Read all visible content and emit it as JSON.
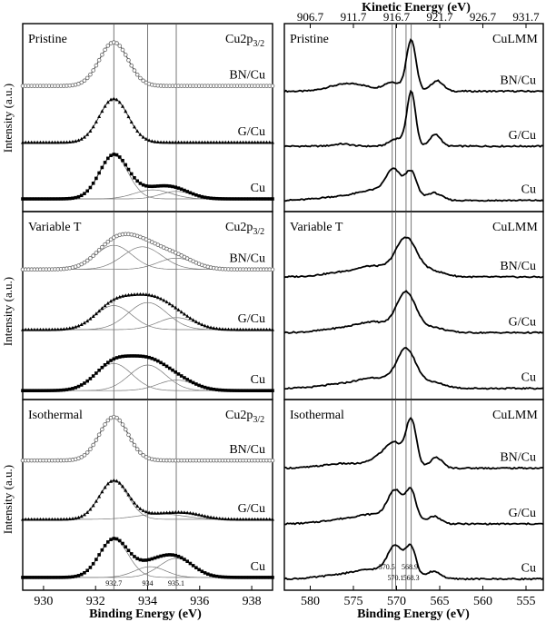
{
  "figure": {
    "top_axis_title": "Kinetic Energy (eV)",
    "bottom_axis_title": "Binding Energy (eV)",
    "y_axis_title": "Intensity (a.u.)"
  },
  "chart_data": [
    {
      "type": "line",
      "xlabel": "Binding Energy (eV)",
      "ylabel": "Intensity (a.u.)",
      "x_axis_ticks": [
        930,
        932,
        934,
        936,
        938
      ],
      "xlim": [
        929.2,
        938.8
      ],
      "x_reversed": false,
      "reference_lines": [
        932.7,
        934,
        935.1
      ],
      "reference_labels": [
        "932.7",
        "934",
        "935.1"
      ],
      "panels": [
        {
          "title": "Pristine",
          "spectrum_label": "Cu2p3/2",
          "series": [
            {
              "name": "BN/Cu",
              "offset": 1.62,
              "marker": "x",
              "peaks": [
                {
                  "center": 932.7,
                  "height": 0.58,
                  "width": 0.55
                }
              ],
              "components": []
            },
            {
              "name": "G/Cu",
              "offset": 0.87,
              "marker": "triangle",
              "peaks": [
                {
                  "center": 932.7,
                  "height": 0.58,
                  "width": 0.55
                }
              ],
              "components": []
            },
            {
              "name": "Cu",
              "offset": 0.12,
              "marker": "square",
              "peaks": [
                {
                  "center": 932.7,
                  "height": 0.58,
                  "width": 0.55
                },
                {
                  "center": 934.2,
                  "height": 0.12,
                  "width": 0.7
                },
                {
                  "center": 935.1,
                  "height": 0.1,
                  "width": 0.6
                }
              ],
              "components": [
                {
                  "center": 932.7,
                  "height": 0.58,
                  "width": 0.55
                },
                {
                  "center": 934.2,
                  "height": 0.12,
                  "width": 0.7
                },
                {
                  "center": 935.1,
                  "height": 0.1,
                  "width": 0.6
                }
              ]
            }
          ]
        },
        {
          "title": "Variable T",
          "spectrum_label": "Cu2p3/2",
          "series": [
            {
              "name": "BN/Cu",
              "offset": 1.68,
              "marker": "x",
              "peaks": [
                {
                  "center": 932.7,
                  "height": 0.32,
                  "width": 0.7
                },
                {
                  "center": 933.8,
                  "height": 0.3,
                  "width": 0.75
                },
                {
                  "center": 935.1,
                  "height": 0.15,
                  "width": 0.7
                }
              ],
              "components": [
                {
                  "center": 932.7,
                  "height": 0.32,
                  "width": 0.7
                },
                {
                  "center": 933.8,
                  "height": 0.3,
                  "width": 0.75
                },
                {
                  "center": 935.1,
                  "height": 0.15,
                  "width": 0.7
                }
              ]
            },
            {
              "name": "G/Cu",
              "offset": 0.88,
              "marker": "triangle",
              "peaks": [
                {
                  "center": 932.7,
                  "height": 0.32,
                  "width": 0.7
                },
                {
                  "center": 934.0,
                  "height": 0.36,
                  "width": 0.75
                },
                {
                  "center": 935.1,
                  "height": 0.16,
                  "width": 0.7
                }
              ],
              "components": [
                {
                  "center": 932.7,
                  "height": 0.32,
                  "width": 0.7
                },
                {
                  "center": 934.0,
                  "height": 0.36,
                  "width": 0.75
                },
                {
                  "center": 935.1,
                  "height": 0.16,
                  "width": 0.7
                }
              ]
            },
            {
              "name": "Cu",
              "offset": 0.07,
              "marker": "square",
              "peaks": [
                {
                  "center": 932.7,
                  "height": 0.36,
                  "width": 0.7
                },
                {
                  "center": 934.0,
                  "height": 0.34,
                  "width": 0.7
                },
                {
                  "center": 935.1,
                  "height": 0.14,
                  "width": 0.7
                }
              ],
              "components": [
                {
                  "center": 932.7,
                  "height": 0.36,
                  "width": 0.7
                },
                {
                  "center": 934.0,
                  "height": 0.34,
                  "width": 0.7
                },
                {
                  "center": 935.1,
                  "height": 0.14,
                  "width": 0.7
                }
              ]
            }
          ]
        },
        {
          "title": "Isothermal",
          "spectrum_label": "Cu2p3/2",
          "series": [
            {
              "name": "BN/Cu",
              "offset": 1.65,
              "marker": "x",
              "peaks": [
                {
                  "center": 932.7,
                  "height": 0.57,
                  "width": 0.55
                }
              ],
              "components": []
            },
            {
              "name": "G/Cu",
              "offset": 0.88,
              "marker": "triangle",
              "peaks": [
                {
                  "center": 932.7,
                  "height": 0.5,
                  "width": 0.55
                },
                {
                  "center": 934.5,
                  "height": 0.07,
                  "width": 0.9
                },
                {
                  "center": 935.6,
                  "height": 0.05,
                  "width": 0.6
                }
              ],
              "components": [
                {
                  "center": 932.7,
                  "height": 0.5,
                  "width": 0.55
                },
                {
                  "center": 934.5,
                  "height": 0.07,
                  "width": 0.9
                }
              ]
            },
            {
              "name": "Cu",
              "offset": 0.12,
              "marker": "square",
              "peaks": [
                {
                  "center": 932.7,
                  "height": 0.5,
                  "width": 0.55
                },
                {
                  "center": 934.1,
                  "height": 0.14,
                  "width": 0.6
                },
                {
                  "center": 935.1,
                  "height": 0.25,
                  "width": 0.65
                }
              ],
              "components": [
                {
                  "center": 932.7,
                  "height": 0.5,
                  "width": 0.55
                },
                {
                  "center": 934.1,
                  "height": 0.14,
                  "width": 0.6
                },
                {
                  "center": 935.1,
                  "height": 0.25,
                  "width": 0.65
                }
              ]
            }
          ]
        }
      ]
    },
    {
      "type": "line",
      "xlabel": "Binding Energy (eV)",
      "x2label": "Kinetic Energy (eV)",
      "ylabel": "Intensity (a.u.)",
      "x_axis_ticks": [
        580,
        575,
        570,
        565,
        560,
        555
      ],
      "x_reversed": true,
      "xlim": [
        583,
        553
      ],
      "kinetic_ticks": [
        "906.7",
        "911.7",
        "916.7",
        "921.7",
        "926.7",
        "931.7"
      ],
      "reference_lines": [
        570.5,
        570.1,
        568.9,
        568.3
      ],
      "reference_labels": [
        "570.5",
        "570.1",
        "568.9",
        "568.3"
      ],
      "panels": [
        {
          "title": "Pristine",
          "spectrum_label": "CuLMM",
          "series": [
            {
              "name": "BN/Cu",
              "offset": 1.55,
              "peaks": [
                {
                  "center": 577,
                  "height": 0.06,
                  "width": 1.5
                },
                {
                  "center": 574.5,
                  "height": 0.08,
                  "width": 1.5
                },
                {
                  "center": 570.5,
                  "height": 0.12,
                  "width": 1.0
                },
                {
                  "center": 568.3,
                  "height": 0.68,
                  "width": 0.55
                },
                {
                  "center": 565.3,
                  "height": 0.14,
                  "width": 0.7
                }
              ]
            },
            {
              "name": "G/Cu",
              "offset": 0.82,
              "peaks": [
                {
                  "center": 576.3,
                  "height": 0.03,
                  "width": 1.0
                },
                {
                  "center": 570.0,
                  "height": 0.1,
                  "width": 0.8
                },
                {
                  "center": 568.3,
                  "height": 0.72,
                  "width": 0.5
                },
                {
                  "center": 565.5,
                  "height": 0.16,
                  "width": 0.6
                }
              ]
            },
            {
              "name": "Cu",
              "offset": 0.1,
              "peaks": [
                {
                  "center": 576.5,
                  "height": 0.05,
                  "width": 2.5
                },
                {
                  "center": 572.5,
                  "height": 0.12,
                  "width": 1.8
                },
                {
                  "center": 570.3,
                  "height": 0.36,
                  "width": 0.9
                },
                {
                  "center": 568.3,
                  "height": 0.36,
                  "width": 0.65
                },
                {
                  "center": 565.7,
                  "height": 0.1,
                  "width": 0.9
                }
              ]
            }
          ]
        },
        {
          "title": "Variable T",
          "spectrum_label": "CuLMM",
          "series": [
            {
              "name": "BN/Cu",
              "offset": 1.58,
              "peaks": [
                {
                  "center": 576,
                  "height": 0.06,
                  "width": 2.5
                },
                {
                  "center": 572.5,
                  "height": 0.12,
                  "width": 1.8
                },
                {
                  "center": 568.9,
                  "height": 0.5,
                  "width": 1.2
                },
                {
                  "center": 566,
                  "height": 0.08,
                  "width": 1.5
                }
              ]
            },
            {
              "name": "G/Cu",
              "offset": 0.84,
              "peaks": [
                {
                  "center": 576,
                  "height": 0.06,
                  "width": 2.5
                },
                {
                  "center": 572.5,
                  "height": 0.12,
                  "width": 1.8
                },
                {
                  "center": 568.9,
                  "height": 0.52,
                  "width": 1.1
                },
                {
                  "center": 566,
                  "height": 0.07,
                  "width": 1.5
                }
              ]
            },
            {
              "name": "Cu",
              "offset": 0.1,
              "peaks": [
                {
                  "center": 576,
                  "height": 0.06,
                  "width": 2.5
                },
                {
                  "center": 572.3,
                  "height": 0.12,
                  "width": 1.8
                },
                {
                  "center": 568.9,
                  "height": 0.5,
                  "width": 1.1
                },
                {
                  "center": 566,
                  "height": 0.08,
                  "width": 1.5
                }
              ]
            }
          ]
        },
        {
          "title": "Isothermal",
          "spectrum_label": "CuLMM",
          "series": [
            {
              "name": "BN/Cu",
              "offset": 1.55,
              "peaks": [
                {
                  "center": 576,
                  "height": 0.06,
                  "width": 2.5
                },
                {
                  "center": 571.5,
                  "height": 0.16,
                  "width": 1.3
                },
                {
                  "center": 570.1,
                  "height": 0.24,
                  "width": 0.9
                },
                {
                  "center": 568.3,
                  "height": 0.62,
                  "width": 0.6
                },
                {
                  "center": 565.4,
                  "height": 0.14,
                  "width": 0.7
                }
              ]
            },
            {
              "name": "G/Cu",
              "offset": 0.82,
              "peaks": [
                {
                  "center": 576,
                  "height": 0.06,
                  "width": 2.5
                },
                {
                  "center": 572.5,
                  "height": 0.1,
                  "width": 1.8
                },
                {
                  "center": 570.1,
                  "height": 0.4,
                  "width": 0.9
                },
                {
                  "center": 568.3,
                  "height": 0.4,
                  "width": 0.6
                },
                {
                  "center": 565.7,
                  "height": 0.1,
                  "width": 0.8
                }
              ]
            },
            {
              "name": "Cu",
              "offset": 0.1,
              "peaks": [
                {
                  "center": 576,
                  "height": 0.06,
                  "width": 2.5
                },
                {
                  "center": 572.5,
                  "height": 0.1,
                  "width": 1.8
                },
                {
                  "center": 570.1,
                  "height": 0.4,
                  "width": 0.9
                },
                {
                  "center": 568.3,
                  "height": 0.38,
                  "width": 0.6
                },
                {
                  "center": 565.7,
                  "height": 0.1,
                  "width": 0.8
                }
              ]
            }
          ]
        }
      ]
    }
  ]
}
